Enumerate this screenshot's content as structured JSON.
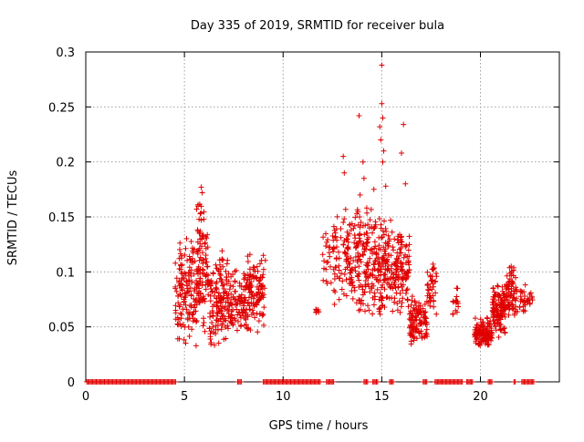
{
  "chart_data": {
    "type": "scatter",
    "title": "Day 335 of 2019, SRMTID for receiver bula",
    "xlabel": "GPS time / hours",
    "ylabel": "SRMTID / TECUs",
    "xlim": [
      0,
      24
    ],
    "ylim": [
      0,
      0.3
    ],
    "xticks": [
      0,
      5,
      10,
      15,
      20
    ],
    "yticks": [
      0,
      0.05,
      0.1,
      0.15,
      0.2,
      0.25,
      0.3
    ],
    "xtick_labels": [
      "0",
      "5",
      "10",
      "15",
      "20"
    ],
    "ytick_labels": [
      "0",
      "0.05",
      "0.1",
      "0.15",
      "0.2",
      "0.25",
      "0.3"
    ],
    "grid": true,
    "marker": "+",
    "color": "#e00000",
    "zero_segments": [
      [
        0.05,
        4.55
      ],
      [
        7.7,
        7.9
      ],
      [
        9.0,
        11.9
      ],
      [
        12.2,
        12.6
      ],
      [
        14.1,
        14.3
      ],
      [
        14.55,
        14.8
      ],
      [
        15.4,
        15.6
      ],
      [
        17.1,
        17.3
      ],
      [
        17.7,
        19.1
      ],
      [
        19.3,
        19.6
      ],
      [
        20.4,
        20.6
      ],
      [
        21.7,
        21.8
      ],
      [
        22.1,
        22.7
      ]
    ],
    "clusters": [
      {
        "x": [
          4.5,
          5.6
        ],
        "y": [
          0.03,
          0.14
        ],
        "n": 140
      },
      {
        "x": [
          5.6,
          6.2
        ],
        "y": [
          0.04,
          0.17
        ],
        "n": 110
      },
      {
        "x": [
          6.2,
          7.3
        ],
        "y": [
          0.03,
          0.12
        ],
        "n": 150
      },
      {
        "x": [
          7.3,
          8.2
        ],
        "y": [
          0.04,
          0.11
        ],
        "n": 100
      },
      {
        "x": [
          8.2,
          9.1
        ],
        "y": [
          0.04,
          0.12
        ],
        "n": 110
      },
      {
        "x": [
          11.6,
          11.9
        ],
        "y": [
          0.06,
          0.07
        ],
        "n": 8
      },
      {
        "x": [
          12.0,
          12.5
        ],
        "y": [
          0.08,
          0.14
        ],
        "n": 20
      },
      {
        "x": [
          12.5,
          13.5
        ],
        "y": [
          0.06,
          0.16
        ],
        "n": 90
      },
      {
        "x": [
          13.5,
          14.5
        ],
        "y": [
          0.06,
          0.17
        ],
        "n": 120
      },
      {
        "x": [
          14.5,
          15.5
        ],
        "y": [
          0.05,
          0.16
        ],
        "n": 140
      },
      {
        "x": [
          15.5,
          16.4
        ],
        "y": [
          0.06,
          0.14
        ],
        "n": 120
      },
      {
        "x": [
          16.4,
          17.3
        ],
        "y": [
          0.03,
          0.08
        ],
        "n": 110
      },
      {
        "x": [
          17.3,
          17.8
        ],
        "y": [
          0.06,
          0.11
        ],
        "n": 40
      },
      {
        "x": [
          18.6,
          18.9
        ],
        "y": [
          0.05,
          0.09
        ],
        "n": 15
      },
      {
        "x": [
          19.7,
          20.6
        ],
        "y": [
          0.03,
          0.06
        ],
        "n": 120
      },
      {
        "x": [
          20.6,
          21.3
        ],
        "y": [
          0.04,
          0.09
        ],
        "n": 120
      },
      {
        "x": [
          21.3,
          21.8
        ],
        "y": [
          0.05,
          0.11
        ],
        "n": 70
      },
      {
        "x": [
          21.8,
          22.7
        ],
        "y": [
          0.06,
          0.09
        ],
        "n": 35
      }
    ],
    "outliers": {
      "x": [
        15.0,
        15.0,
        14.9,
        15.05,
        15.1,
        13.85,
        14.95,
        15.05,
        16.1,
        16.0,
        13.05,
        13.1,
        14.05,
        14.1,
        5.85,
        5.9,
        16.2,
        14.6,
        15.2,
        13.9
      ],
      "y": [
        0.288,
        0.253,
        0.232,
        0.24,
        0.21,
        0.242,
        0.22,
        0.2,
        0.234,
        0.208,
        0.205,
        0.19,
        0.2,
        0.185,
        0.177,
        0.172,
        0.18,
        0.175,
        0.178,
        0.17
      ]
    }
  }
}
